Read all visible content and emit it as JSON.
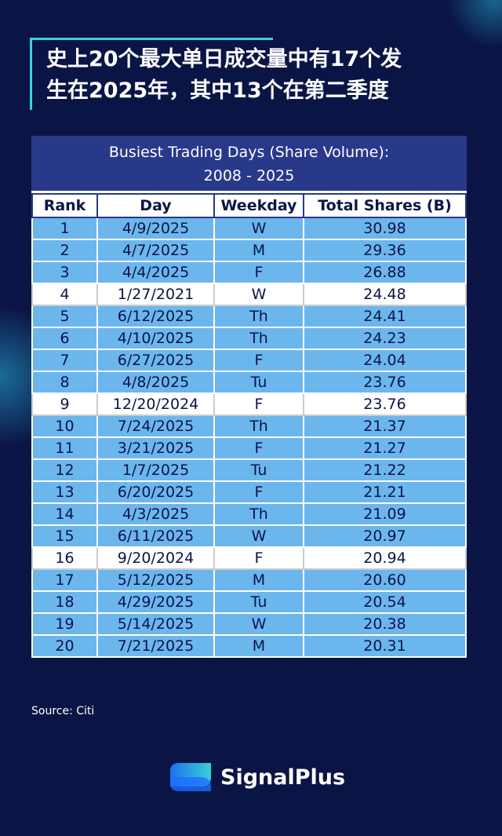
{
  "header": {
    "title_lines": [
      "史上20个最大单日成交量中有17个发",
      "生在2025年，其中13个在第二季度"
    ]
  },
  "table": {
    "caption_lines": [
      "Busiest Trading Days (Share Volume):",
      "2008 - 2025"
    ],
    "columns": [
      "Rank",
      "Day",
      "Weekday",
      "Total Shares (B)"
    ],
    "rows": [
      [
        "1",
        "4/9/2025",
        "W",
        "30.98"
      ],
      [
        "2",
        "4/7/2025",
        "M",
        "29.36"
      ],
      [
        "3",
        "4/4/2025",
        "F",
        "26.88"
      ],
      [
        "4",
        "1/27/2021",
        "W",
        "24.48"
      ],
      [
        "5",
        "6/12/2025",
        "Th",
        "24.41"
      ],
      [
        "6",
        "4/10/2025",
        "Th",
        "24.23"
      ],
      [
        "7",
        "6/27/2025",
        "F",
        "24.04"
      ],
      [
        "8",
        "4/8/2025",
        "Tu",
        "23.76"
      ],
      [
        "9",
        "12/20/2024",
        "F",
        "23.76"
      ],
      [
        "10",
        "7/24/2025",
        "Th",
        "21.37"
      ],
      [
        "11",
        "3/21/2025",
        "F",
        "21.27"
      ],
      [
        "12",
        "1/7/2025",
        "Tu",
        "21.22"
      ],
      [
        "13",
        "6/20/2025",
        "F",
        "21.21"
      ],
      [
        "14",
        "4/3/2025",
        "Th",
        "21.09"
      ],
      [
        "15",
        "6/11/2025",
        "W",
        "20.97"
      ],
      [
        "16",
        "9/20/2024",
        "F",
        "20.94"
      ],
      [
        "17",
        "5/12/2025",
        "M",
        "20.60"
      ],
      [
        "18",
        "4/29/2025",
        "Tu",
        "20.54"
      ],
      [
        "19",
        "5/14/2025",
        "W",
        "20.38"
      ],
      [
        "20",
        "7/21/2025",
        "M",
        "20.31"
      ]
    ]
  },
  "source": "Source: Citi",
  "brand": "SignalPlus"
}
